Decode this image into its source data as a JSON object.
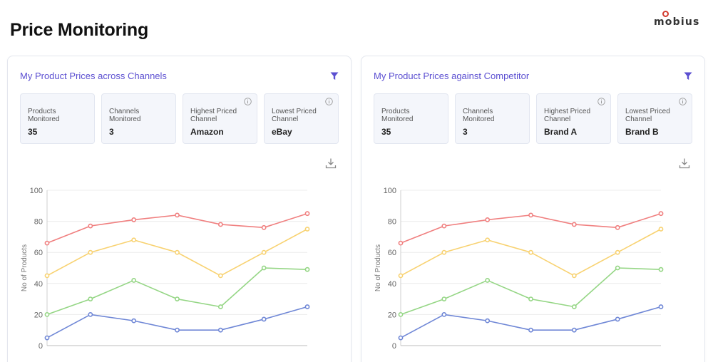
{
  "page": {
    "title": "Price Monitoring"
  },
  "brand": {
    "name": "mobius",
    "accent": "#d23a2e"
  },
  "panels": [
    {
      "title": "My Product Prices across Channels",
      "cards": [
        {
          "label": "Products Monitored",
          "value": "35",
          "info": false
        },
        {
          "label": "Channels Monitored",
          "value": "3",
          "info": false
        },
        {
          "label": "Highest Priced Channel",
          "value": "Amazon",
          "info": true
        },
        {
          "label": "Lowest Priced Channel",
          "value": "eBay",
          "info": true
        }
      ]
    },
    {
      "title": "My Product Prices against Competitor",
      "cards": [
        {
          "label": "Products Monitored",
          "value": "35",
          "info": false
        },
        {
          "label": "Channels Monitored",
          "value": "3",
          "info": false
        },
        {
          "label": "Highest Priced Channel",
          "value": "Brand A",
          "info": true
        },
        {
          "label": "Lowest Priced Channel",
          "value": "Brand B",
          "info": true
        }
      ]
    }
  ],
  "icons": {
    "filter": "filter-icon",
    "download": "download-icon",
    "info": "info-icon"
  },
  "colors": {
    "title_accent": "#5b4fd1"
  },
  "chart_data": [
    {
      "type": "line",
      "ylabel": "No of Products",
      "ylim": [
        0,
        100
      ],
      "yticks": [
        0,
        20,
        40,
        60,
        80,
        100
      ],
      "grid": true,
      "x": [
        1,
        2,
        3,
        4,
        5,
        6,
        7
      ],
      "series": [
        {
          "values": [
            66,
            77,
            81,
            84,
            78,
            76,
            85
          ],
          "color": "#f07f7f"
        },
        {
          "values": [
            45,
            60,
            68,
            60,
            45,
            60,
            75
          ],
          "color": "#f8d271"
        },
        {
          "values": [
            20,
            30,
            42,
            30,
            25,
            50,
            49
          ],
          "color": "#95d685"
        },
        {
          "values": [
            5,
            20,
            16,
            10,
            10,
            17,
            25
          ],
          "color": "#6f87d6"
        }
      ]
    },
    {
      "type": "line",
      "ylabel": "No of Products",
      "ylim": [
        0,
        100
      ],
      "yticks": [
        0,
        20,
        40,
        60,
        80,
        100
      ],
      "grid": true,
      "x": [
        1,
        2,
        3,
        4,
        5,
        6,
        7
      ],
      "series": [
        {
          "values": [
            66,
            77,
            81,
            84,
            78,
            76,
            85
          ],
          "color": "#f07f7f"
        },
        {
          "values": [
            45,
            60,
            68,
            60,
            45,
            60,
            75
          ],
          "color": "#f8d271"
        },
        {
          "values": [
            20,
            30,
            42,
            30,
            25,
            50,
            49
          ],
          "color": "#95d685"
        },
        {
          "values": [
            5,
            20,
            16,
            10,
            10,
            17,
            25
          ],
          "color": "#6f87d6"
        }
      ]
    }
  ]
}
